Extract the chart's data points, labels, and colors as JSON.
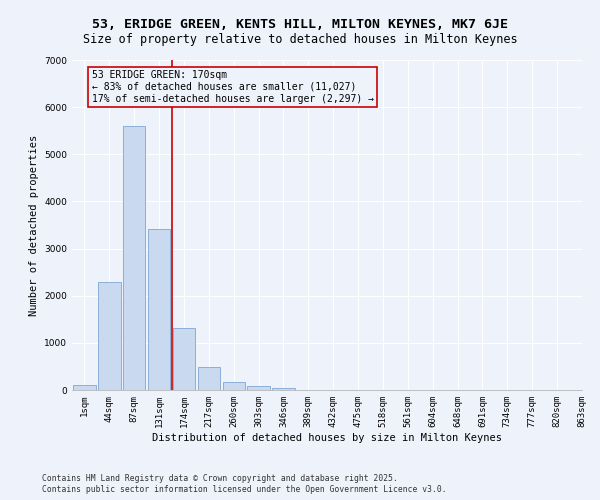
{
  "title": "53, ERIDGE GREEN, KENTS HILL, MILTON KEYNES, MK7 6JE",
  "subtitle": "Size of property relative to detached houses in Milton Keynes",
  "xlabel": "Distribution of detached houses by size in Milton Keynes",
  "ylabel": "Number of detached properties",
  "bar_values": [
    100,
    2300,
    5600,
    3420,
    1320,
    480,
    160,
    80,
    50,
    0,
    0,
    0,
    0,
    0,
    0,
    0,
    0,
    0,
    0,
    0
  ],
  "bin_labels": [
    "1sqm",
    "44sqm",
    "87sqm",
    "131sqm",
    "174sqm",
    "217sqm",
    "260sqm",
    "303sqm",
    "346sqm",
    "389sqm",
    "432sqm",
    "475sqm",
    "518sqm",
    "561sqm",
    "604sqm",
    "648sqm",
    "691sqm",
    "734sqm",
    "777sqm",
    "820sqm",
    "863sqm"
  ],
  "bar_color": "#c9d9f0",
  "bar_edge_color": "#7ea6d4",
  "vline_x": 3.5,
  "vline_color": "#cc0000",
  "annotation_title": "53 ERIDGE GREEN: 170sqm",
  "annotation_line1": "← 83% of detached houses are smaller (11,027)",
  "annotation_line2": "17% of semi-detached houses are larger (2,297) →",
  "annotation_box_color": "#cc0000",
  "ylim": [
    0,
    7000
  ],
  "yticks": [
    0,
    1000,
    2000,
    3000,
    4000,
    5000,
    6000,
    7000
  ],
  "footer_line1": "Contains HM Land Registry data © Crown copyright and database right 2025.",
  "footer_line2": "Contains public sector information licensed under the Open Government Licence v3.0.",
  "background_color": "#eef2fb",
  "grid_color": "#ffffff",
  "title_fontsize": 9.5,
  "subtitle_fontsize": 8.5,
  "annotation_fontsize": 7.0,
  "axis_label_fontsize": 7.5,
  "tick_fontsize": 6.5,
  "footer_fontsize": 5.8
}
